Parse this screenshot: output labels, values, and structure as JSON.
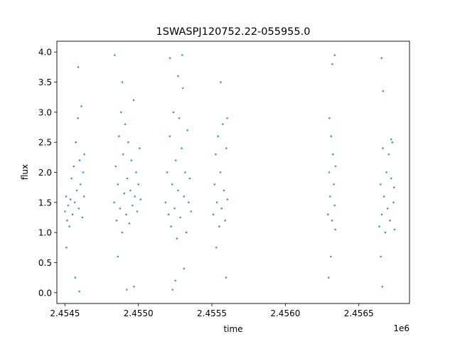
{
  "chart_data": {
    "type": "scatter",
    "title": "1SWASPJ120752.22-055955.0",
    "xlabel": "time",
    "ylabel": "flux",
    "x_offset_label": "1e6",
    "xlim": [
      2454445,
      2456845
    ],
    "ylim": [
      -0.18,
      4.18
    ],
    "x_ticks": [
      2454500,
      2455000,
      2455500,
      2456000,
      2456500
    ],
    "x_tick_labels": [
      "2.4545",
      "2.4550",
      "2.4555",
      "2.4560",
      "2.4565"
    ],
    "y_ticks": [
      0.0,
      0.5,
      1.0,
      1.5,
      2.0,
      2.5,
      3.0,
      3.5,
      4.0
    ],
    "y_tick_labels": [
      "0.0",
      "0.5",
      "1.0",
      "1.5",
      "2.0",
      "2.5",
      "3.0",
      "3.5",
      "4.0"
    ],
    "grid": false,
    "legend": "none",
    "marker_color": "#1f77b4",
    "series": [
      {
        "values": [
          [
            2454500,
            1.35
          ],
          [
            2454508,
            1.6
          ],
          [
            2454515,
            1.2
          ],
          [
            2454522,
            1.45
          ],
          [
            2454530,
            1.1
          ],
          [
            2454538,
            1.55
          ],
          [
            2454545,
            1.9
          ],
          [
            2454552,
            1.3
          ],
          [
            2454560,
            2.1
          ],
          [
            2454567,
            1.5
          ],
          [
            2454574,
            2.5
          ],
          [
            2454581,
            1.7
          ],
          [
            2454588,
            2.9
          ],
          [
            2454594,
            1.4
          ],
          [
            2454600,
            2.2
          ],
          [
            2454605,
            1.8
          ],
          [
            2454612,
            3.1
          ],
          [
            2454618,
            1.25
          ],
          [
            2454624,
            2.0
          ],
          [
            2454630,
            1.6
          ],
          [
            2454510,
            0.75
          ],
          [
            2454590,
            3.75
          ],
          [
            2454570,
            0.25
          ],
          [
            2454598,
            0.02
          ],
          [
            2454632,
            2.3
          ],
          [
            2454835,
            1.5
          ],
          [
            2454845,
            2.1
          ],
          [
            2454852,
            1.2
          ],
          [
            2454860,
            1.8
          ],
          [
            2454868,
            2.6
          ],
          [
            2454875,
            1.4
          ],
          [
            2454882,
            3.0
          ],
          [
            2454889,
            1.0
          ],
          [
            2454896,
            2.3
          ],
          [
            2454903,
            1.65
          ],
          [
            2454910,
            2.8
          ],
          [
            2454917,
            1.3
          ],
          [
            2454924,
            1.9
          ],
          [
            2454931,
            2.5
          ],
          [
            2454938,
            1.15
          ],
          [
            2454945,
            1.7
          ],
          [
            2454952,
            2.2
          ],
          [
            2454960,
            1.45
          ],
          [
            2454968,
            3.2
          ],
          [
            2454976,
            1.6
          ],
          [
            2454984,
            2.0
          ],
          [
            2454992,
            1.35
          ],
          [
            2455000,
            1.8
          ],
          [
            2455008,
            2.4
          ],
          [
            2455015,
            1.55
          ],
          [
            2454838,
            3.95
          ],
          [
            2454920,
            0.05
          ],
          [
            2454860,
            0.6
          ],
          [
            2454970,
            0.1
          ],
          [
            2454890,
            3.5
          ],
          [
            2455185,
            1.5
          ],
          [
            2455195,
            2.0
          ],
          [
            2455205,
            1.3
          ],
          [
            2455214,
            2.6
          ],
          [
            2455222,
            1.1
          ],
          [
            2455230,
            1.8
          ],
          [
            2455238,
            3.0
          ],
          [
            2455246,
            1.4
          ],
          [
            2455254,
            2.2
          ],
          [
            2455262,
            0.9
          ],
          [
            2455270,
            1.7
          ],
          [
            2455278,
            2.9
          ],
          [
            2455286,
            1.25
          ],
          [
            2455294,
            2.4
          ],
          [
            2455302,
            3.4
          ],
          [
            2455310,
            1.6
          ],
          [
            2455318,
            2.0
          ],
          [
            2455326,
            1.0
          ],
          [
            2455334,
            2.7
          ],
          [
            2455342,
            1.5
          ],
          [
            2455350,
            1.9
          ],
          [
            2455358,
            1.35
          ],
          [
            2455215,
            3.9
          ],
          [
            2455252,
            0.2
          ],
          [
            2455298,
            3.95
          ],
          [
            2455232,
            0.05
          ],
          [
            2455310,
            0.4
          ],
          [
            2455270,
            3.6
          ],
          [
            2455510,
            1.3
          ],
          [
            2455518,
            1.8
          ],
          [
            2455526,
            2.3
          ],
          [
            2455534,
            1.5
          ],
          [
            2455542,
            2.6
          ],
          [
            2455550,
            1.1
          ],
          [
            2455558,
            2.0
          ],
          [
            2455566,
            1.4
          ],
          [
            2455574,
            2.8
          ],
          [
            2455582,
            1.7
          ],
          [
            2455590,
            1.2
          ],
          [
            2455598,
            2.4
          ],
          [
            2455606,
            1.55
          ],
          [
            2455560,
            3.5
          ],
          [
            2455596,
            0.25
          ],
          [
            2455530,
            0.75
          ],
          [
            2455605,
            2.9
          ],
          [
            2456290,
            1.3
          ],
          [
            2456298,
            2.0
          ],
          [
            2456305,
            1.6
          ],
          [
            2456312,
            2.6
          ],
          [
            2456318,
            1.2
          ],
          [
            2456324,
            2.3
          ],
          [
            2456330,
            1.8
          ],
          [
            2456336,
            1.45
          ],
          [
            2456342,
            2.1
          ],
          [
            2456300,
            2.9
          ],
          [
            2456320,
            3.8
          ],
          [
            2456336,
            3.95
          ],
          [
            2456295,
            0.25
          ],
          [
            2456310,
            0.6
          ],
          [
            2456340,
            1.05
          ],
          [
            2456640,
            1.1
          ],
          [
            2456648,
            1.8
          ],
          [
            2456656,
            1.3
          ],
          [
            2456664,
            2.4
          ],
          [
            2456672,
            1.6
          ],
          [
            2456680,
            1.0
          ],
          [
            2456688,
            2.0
          ],
          [
            2456696,
            1.4
          ],
          [
            2456704,
            2.3
          ],
          [
            2456712,
            1.2
          ],
          [
            2456720,
            1.9
          ],
          [
            2456728,
            2.5
          ],
          [
            2456736,
            1.5
          ],
          [
            2456744,
            1.05
          ],
          [
            2456655,
            3.9
          ],
          [
            2456665,
            3.35
          ],
          [
            2456660,
            0.1
          ],
          [
            2456650,
            0.6
          ],
          [
            2456720,
            2.55
          ],
          [
            2456740,
            1.75
          ]
        ]
      }
    ]
  }
}
